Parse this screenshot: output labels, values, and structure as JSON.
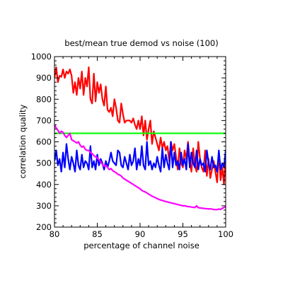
{
  "chart_data": {
    "type": "line",
    "title": "best/mean true demod vs noise (100)",
    "xlabel": "percentage of channel noise",
    "ylabel": "correlation quality",
    "xlim": [
      80,
      100
    ],
    "ylim": [
      200,
      1000
    ],
    "x_ticks": [
      80,
      85,
      90,
      95,
      100
    ],
    "y_ticks": [
      200,
      300,
      400,
      500,
      600,
      700,
      800,
      900,
      1000
    ],
    "grid": false,
    "legend": "none",
    "x": [
      80.0,
      80.2,
      80.4,
      80.6,
      80.8,
      81.0,
      81.2,
      81.4,
      81.6,
      81.8,
      82.0,
      82.2,
      82.4,
      82.6,
      82.8,
      83.0,
      83.2,
      83.4,
      83.6,
      83.8,
      84.0,
      84.2,
      84.4,
      84.6,
      84.8,
      85.0,
      85.2,
      85.4,
      85.6,
      85.8,
      86.0,
      86.2,
      86.4,
      86.6,
      86.8,
      87.0,
      87.2,
      87.4,
      87.6,
      87.8,
      88.0,
      88.2,
      88.4,
      88.6,
      88.8,
      89.0,
      89.2,
      89.4,
      89.6,
      89.8,
      90.0,
      90.2,
      90.4,
      90.6,
      90.8,
      91.0,
      91.2,
      91.4,
      91.6,
      91.8,
      92.0,
      92.2,
      92.4,
      92.6,
      92.8,
      93.0,
      93.2,
      93.4,
      93.6,
      93.8,
      94.0,
      94.2,
      94.4,
      94.6,
      94.8,
      95.0,
      95.2,
      95.4,
      95.6,
      95.8,
      96.0,
      96.2,
      96.4,
      96.6,
      96.8,
      97.0,
      97.2,
      97.4,
      97.6,
      97.8,
      98.0,
      98.2,
      98.4,
      98.6,
      98.8,
      99.0,
      99.2,
      99.4,
      99.6,
      99.8,
      100.0
    ],
    "series": [
      {
        "color": "#ff0000",
        "values": [
          900,
          950,
          880,
          910,
          905,
          940,
          900,
          930,
          920,
          940,
          910,
          830,
          880,
          820,
          900,
          850,
          930,
          820,
          900,
          860,
          950,
          800,
          780,
          920,
          790,
          880,
          830,
          870,
          800,
          770,
          860,
          750,
          740,
          760,
          720,
          800,
          760,
          700,
          690,
          780,
          730,
          690,
          700,
          700,
          700,
          690,
          710,
          680,
          660,
          700,
          660,
          720,
          630,
          700,
          610,
          660,
          700,
          590,
          650,
          620,
          590,
          560,
          620,
          570,
          600,
          560,
          580,
          510,
          600,
          560,
          590,
          530,
          470,
          570,
          500,
          480,
          560,
          520,
          600,
          510,
          460,
          570,
          490,
          460,
          600,
          520,
          480,
          460,
          560,
          440,
          520,
          430,
          470,
          510,
          460,
          410,
          550,
          420,
          480,
          400,
          550
        ],
        "width": 2.2
      },
      {
        "color": "#00ff00",
        "values": [
          640,
          640,
          640,
          640,
          640,
          640,
          640,
          640,
          640,
          640,
          640,
          640,
          640,
          640,
          640,
          640,
          640,
          640,
          640,
          640,
          640,
          640,
          640,
          640,
          640,
          640,
          640,
          640,
          640,
          640,
          640,
          640,
          640,
          640,
          640,
          640,
          640,
          640,
          640,
          640,
          640,
          640,
          640,
          640,
          640,
          640,
          640,
          640,
          640,
          640,
          640,
          640,
          640,
          640,
          640,
          640,
          640,
          640,
          640,
          640,
          640,
          640,
          640,
          640,
          640,
          640,
          640,
          640,
          640,
          640,
          640,
          640,
          640,
          640,
          640,
          640,
          640,
          640,
          640,
          640,
          640,
          640,
          640,
          640,
          640,
          640,
          640,
          640,
          640,
          640,
          640,
          640,
          640,
          640,
          640,
          640,
          640,
          640,
          640,
          640,
          640
        ],
        "width": 2.2
      },
      {
        "color": "#0000ff",
        "values": [
          510,
          560,
          490,
          520,
          460,
          550,
          480,
          590,
          520,
          470,
          530,
          500,
          460,
          560,
          490,
          470,
          540,
          480,
          510,
          500,
          470,
          580,
          480,
          510,
          470,
          540,
          490,
          520,
          500,
          470,
          510,
          480,
          510,
          550,
          510,
          500,
          490,
          560,
          550,
          490,
          480,
          530,
          500,
          470,
          540,
          490,
          510,
          570,
          470,
          520,
          490,
          580,
          490,
          470,
          600,
          490,
          510,
          470,
          500,
          480,
          530,
          490,
          460,
          570,
          480,
          540,
          500,
          470,
          600,
          480,
          550,
          490,
          510,
          470,
          550,
          490,
          520,
          470,
          590,
          480,
          550,
          500,
          480,
          560,
          470,
          520,
          490,
          500,
          460,
          560,
          500,
          470,
          530,
          480,
          490,
          460,
          560,
          470,
          500,
          480,
          560
        ],
        "width": 2.2
      },
      {
        "color": "#ff00ff",
        "values": [
          680,
          665,
          655,
          640,
          650,
          645,
          630,
          620,
          630,
          640,
          610,
          605,
          600,
          595,
          600,
          585,
          575,
          580,
          565,
          560,
          560,
          550,
          545,
          535,
          530,
          525,
          515,
          505,
          495,
          485,
          490,
          480,
          470,
          475,
          465,
          460,
          455,
          448,
          445,
          440,
          430,
          425,
          420,
          415,
          410,
          405,
          400,
          395,
          390,
          385,
          380,
          372,
          368,
          365,
          360,
          355,
          350,
          345,
          342,
          338,
          334,
          330,
          327,
          325,
          322,
          320,
          318,
          316,
          314,
          312,
          310,
          308,
          306,
          304,
          302,
          300,
          300,
          298,
          296,
          296,
          294,
          293,
          292,
          300,
          291,
          290,
          289,
          288,
          287,
          286,
          285,
          286,
          284,
          283,
          282,
          282,
          285,
          283,
          288,
          292,
          295
        ],
        "width": 2.2
      }
    ]
  }
}
